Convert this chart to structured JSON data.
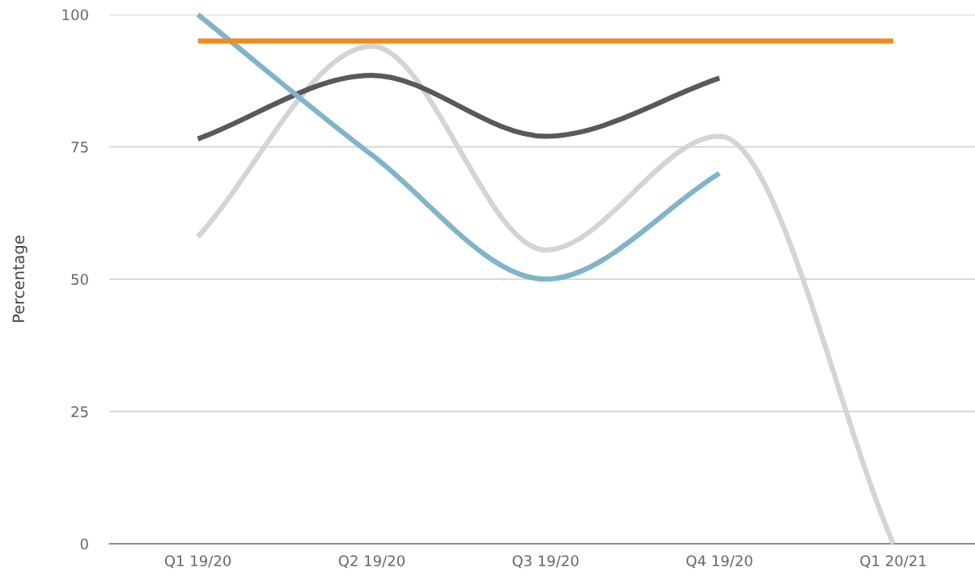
{
  "chart_data": {
    "type": "line",
    "ylabel": "Percentage",
    "categories": [
      "Q1 19/20",
      "Q2 19/20",
      "Q3 19/20",
      "Q4 19/20",
      "Q1 20/21"
    ],
    "series": [
      {
        "color": "#d4d4d4",
        "values": [
          58,
          94,
          55.5,
          77,
          0
        ]
      },
      {
        "color": "#595959",
        "values": [
          76.5,
          88.5,
          77,
          88,
          null
        ]
      },
      {
        "color": "#80b4c9",
        "values": [
          100,
          73.5,
          50,
          70,
          null
        ]
      },
      {
        "color": "#f08a1e",
        "values": [
          95,
          95,
          95,
          95,
          95
        ]
      }
    ],
    "ylim": [
      0,
      100
    ],
    "yticks": [
      0,
      25,
      50,
      75,
      100
    ],
    "grid": "y",
    "line_style": "solid",
    "marker": "none"
  }
}
